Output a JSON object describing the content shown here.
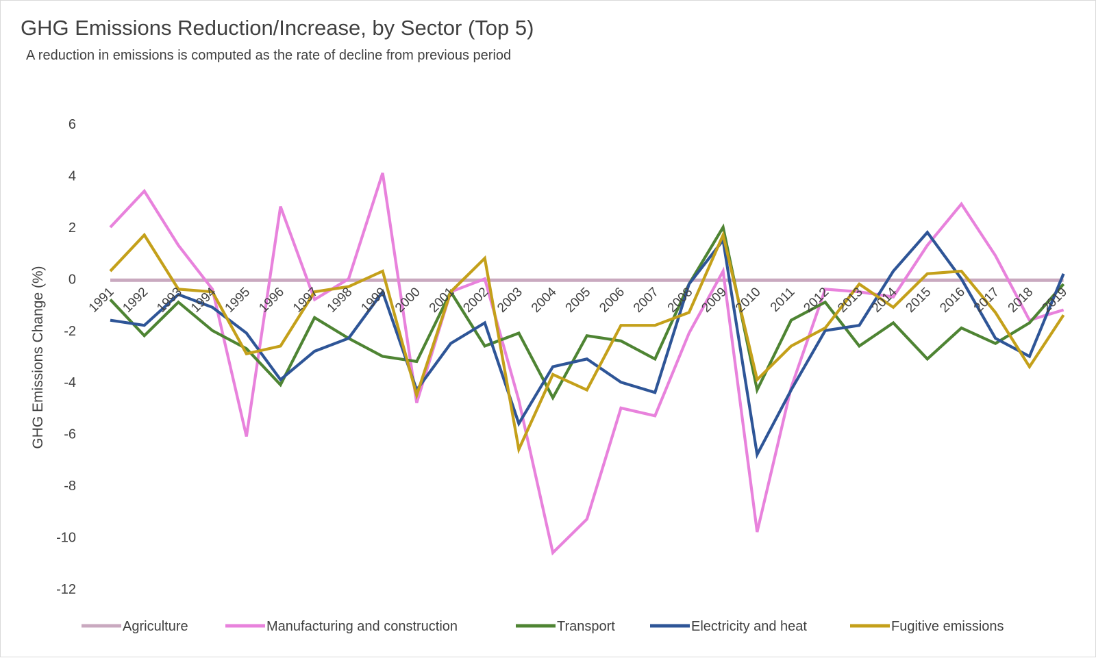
{
  "header": {
    "title": "GHG Emissions Reduction/Increase, by Sector (Top 5)",
    "subtitle": "A reduction in emissions is computed as the rate of decline from previous period"
  },
  "chart_data": {
    "type": "line",
    "title": "GHG Emissions Reduction/Increase, by Sector (Top 5)",
    "subtitle": "A reduction in emissions is computed as the rate of decline from previous period",
    "xlabel": "",
    "ylabel": "GHG Emissions Change (%)",
    "ylim": [
      -12,
      6
    ],
    "yticks": [
      6,
      4,
      2,
      0,
      -2,
      -4,
      -6,
      -8,
      -10,
      -12
    ],
    "grid": false,
    "legend_position": "bottom",
    "categories": [
      "1991",
      "1992",
      "1993",
      "1994",
      "1995",
      "1996",
      "1997",
      "1998",
      "1999",
      "2000",
      "2001",
      "2002",
      "2003",
      "2004",
      "2005",
      "2006",
      "2007",
      "2008",
      "2009",
      "2010",
      "2011",
      "2012",
      "2013",
      "2014",
      "2015",
      "2016",
      "2017",
      "2018",
      "2019"
    ],
    "series": [
      {
        "name": "Agriculture",
        "color": "#c9a9bf",
        "values": [
          -0.05,
          -0.05,
          -0.05,
          -0.05,
          -0.05,
          -0.05,
          -0.05,
          -0.05,
          -0.05,
          -0.05,
          -0.05,
          -0.05,
          -0.05,
          -0.05,
          -0.05,
          -0.05,
          -0.05,
          -0.05,
          -0.05,
          -0.05,
          -0.05,
          -0.05,
          -0.05,
          -0.05,
          -0.05,
          -0.05,
          -0.05,
          -0.05,
          -0.05
        ]
      },
      {
        "name": "Manufacturing and construction",
        "color": "#e882dc",
        "values": [
          2.0,
          3.4,
          1.3,
          -0.4,
          -6.1,
          2.8,
          -0.8,
          0.0,
          4.1,
          -4.8,
          -0.5,
          0.0,
          -4.7,
          -10.6,
          -9.3,
          -5.0,
          -5.3,
          -2.1,
          0.3,
          -9.8,
          -4.2,
          -0.4,
          -0.5,
          -0.7,
          1.3,
          2.9,
          0.9,
          -1.6,
          -1.2
        ]
      },
      {
        "name": "Transport",
        "color": "#4e8433",
        "values": [
          -0.8,
          -2.2,
          -0.9,
          -2.0,
          -2.7,
          -4.1,
          -1.5,
          -2.3,
          -3.0,
          -3.2,
          -0.5,
          -2.6,
          -2.1,
          -4.6,
          -2.2,
          -2.4,
          -3.1,
          -0.2,
          2.0,
          -4.3,
          -1.6,
          -0.9,
          -2.6,
          -1.7,
          -3.1,
          -1.9,
          -2.5,
          -1.7,
          -0.2
        ]
      },
      {
        "name": "Electricity and heat",
        "color": "#2e5597",
        "values": [
          -1.6,
          -1.8,
          -0.6,
          -1.1,
          -2.1,
          -3.9,
          -2.8,
          -2.3,
          -0.5,
          -4.3,
          -2.5,
          -1.7,
          -5.6,
          -3.4,
          -3.1,
          -4.0,
          -4.4,
          -0.2,
          1.5,
          -6.8,
          -4.3,
          -2.0,
          -1.8,
          0.3,
          1.8,
          0.0,
          -2.3,
          -3.0,
          0.2
        ]
      },
      {
        "name": "Fugitive emissions",
        "color": "#c4a01a",
        "values": [
          0.3,
          1.7,
          -0.4,
          -0.5,
          -2.9,
          -2.6,
          -0.5,
          -0.3,
          0.3,
          -4.5,
          -0.5,
          0.8,
          -6.6,
          -3.7,
          -4.3,
          -1.8,
          -1.8,
          -1.3,
          1.7,
          -3.9,
          -2.6,
          -1.9,
          -0.2,
          -1.1,
          0.2,
          0.3,
          -1.3,
          -3.4,
          -1.4
        ]
      }
    ]
  }
}
